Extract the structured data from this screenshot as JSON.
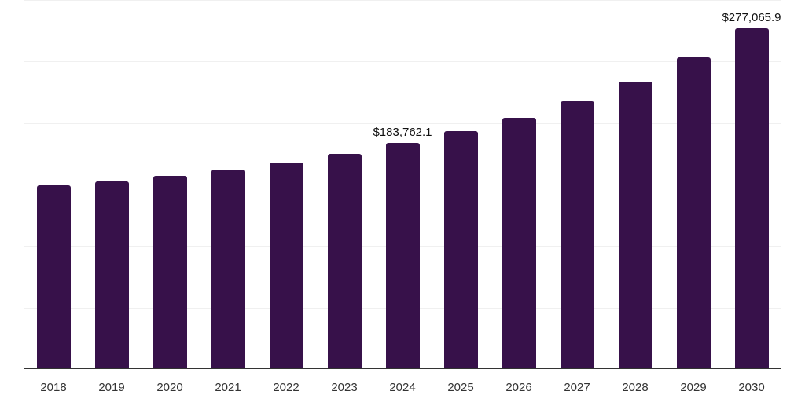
{
  "chart_data": {
    "type": "bar",
    "title": "",
    "xlabel": "",
    "ylabel": "",
    "ylim": [
      0,
      300000
    ],
    "grid": true,
    "legend": null,
    "categories": [
      "2018",
      "2019",
      "2020",
      "2021",
      "2022",
      "2023",
      "2024",
      "2025",
      "2026",
      "2027",
      "2028",
      "2029",
      "2030"
    ],
    "values": [
      149400,
      152600,
      157000,
      162100,
      167900,
      174900,
      183762.1,
      193400,
      204300,
      217700,
      233600,
      253400,
      277065.9
    ],
    "annotations": [
      {
        "category": "2024",
        "text": "$183,762.1"
      },
      {
        "category": "2030",
        "text": "$277,065.9"
      }
    ],
    "bar_color": "#37114a",
    "gridlines": [
      0,
      50000,
      100000,
      150000,
      200000,
      250000,
      300000
    ]
  }
}
